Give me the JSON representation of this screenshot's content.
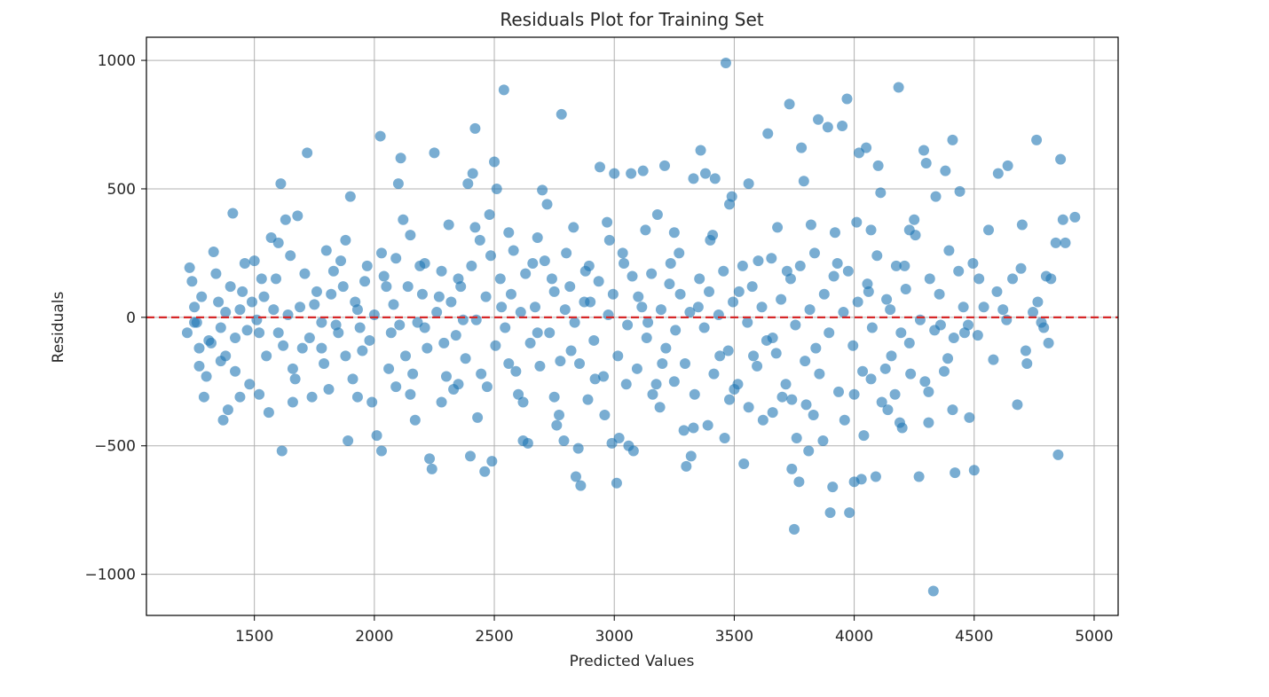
{
  "chart_data": {
    "type": "scatter",
    "title": "Residuals Plot for Training Set",
    "xlabel": "Predicted Values",
    "ylabel": "Residuals",
    "xlim": [
      1050,
      5100
    ],
    "ylim": [
      -1160,
      1090
    ],
    "xticks": [
      1500,
      2000,
      2500,
      3000,
      3500,
      4000,
      4500,
      5000
    ],
    "xtick_labels": [
      "1500",
      "2000",
      "2500",
      "3000",
      "3500",
      "4000",
      "4500",
      "5000"
    ],
    "yticks": [
      1000,
      500,
      0,
      -500,
      -1000
    ],
    "ytick_labels": [
      "1000",
      "500",
      "0",
      "−500",
      "−1000"
    ],
    "grid": true,
    "reference_line": {
      "y": 0,
      "color": "#d62728",
      "style": "dashed"
    },
    "marker_color": "#1f77b4",
    "marker_alpha": 0.6,
    "points": [
      [
        1230,
        193
      ],
      [
        1240,
        140
      ],
      [
        1250,
        40
      ],
      [
        1260,
        -20
      ],
      [
        1220,
        -60
      ],
      [
        1270,
        -120
      ],
      [
        1300,
        -230
      ],
      [
        1290,
        -310
      ],
      [
        1330,
        255
      ],
      [
        1350,
        60
      ],
      [
        1360,
        -40
      ],
      [
        1380,
        -150
      ],
      [
        1370,
        -400
      ],
      [
        1390,
        -360
      ],
      [
        1410,
        405
      ],
      [
        1400,
        120
      ],
      [
        1420,
        -80
      ],
      [
        1440,
        30
      ],
      [
        1460,
        210
      ],
      [
        1480,
        -260
      ],
      [
        1500,
        220
      ],
      [
        1510,
        -10
      ],
      [
        1520,
        -300
      ],
      [
        1540,
        80
      ],
      [
        1560,
        -370
      ],
      [
        1570,
        310
      ],
      [
        1590,
        150
      ],
      [
        1600,
        -60
      ],
      [
        1610,
        520
      ],
      [
        1615,
        -520
      ],
      [
        1630,
        380
      ],
      [
        1650,
        240
      ],
      [
        1660,
        -200
      ],
      [
        1680,
        395
      ],
      [
        1690,
        40
      ],
      [
        1700,
        -120
      ],
      [
        1720,
        640
      ],
      [
        1740,
        -310
      ],
      [
        1760,
        100
      ],
      [
        1780,
        -20
      ],
      [
        1800,
        260
      ],
      [
        1810,
        -280
      ],
      [
        1830,
        180
      ],
      [
        1850,
        -60
      ],
      [
        1870,
        120
      ],
      [
        1890,
        -480
      ],
      [
        1900,
        470
      ],
      [
        1910,
        -240
      ],
      [
        1930,
        30
      ],
      [
        1950,
        -130
      ],
      [
        1970,
        200
      ],
      [
        1990,
        -330
      ],
      [
        2010,
        -460
      ],
      [
        2025,
        705
      ],
      [
        2030,
        -520
      ],
      [
        2050,
        120
      ],
      [
        2070,
        -60
      ],
      [
        2090,
        230
      ],
      [
        2100,
        520
      ],
      [
        2110,
        620
      ],
      [
        2120,
        380
      ],
      [
        2130,
        -150
      ],
      [
        2150,
        320
      ],
      [
        2170,
        -400
      ],
      [
        2190,
        200
      ],
      [
        2210,
        -40
      ],
      [
        2230,
        -550
      ],
      [
        2240,
        -590
      ],
      [
        2250,
        640
      ],
      [
        2270,
        80
      ],
      [
        2290,
        -100
      ],
      [
        2310,
        360
      ],
      [
        2330,
        -280
      ],
      [
        2350,
        150
      ],
      [
        2370,
        -10
      ],
      [
        2390,
        520
      ],
      [
        2400,
        -540
      ],
      [
        2410,
        560
      ],
      [
        2420,
        735
      ],
      [
        2430,
        -390
      ],
      [
        2440,
        300
      ],
      [
        2460,
        -600
      ],
      [
        2480,
        400
      ],
      [
        2490,
        -560
      ],
      [
        2500,
        605
      ],
      [
        2510,
        500
      ],
      [
        2530,
        40
      ],
      [
        2540,
        885
      ],
      [
        2560,
        -180
      ],
      [
        2580,
        260
      ],
      [
        2600,
        -300
      ],
      [
        2620,
        -480
      ],
      [
        2640,
        -490
      ],
      [
        2660,
        210
      ],
      [
        2680,
        -60
      ],
      [
        2700,
        495
      ],
      [
        2720,
        440
      ],
      [
        2740,
        150
      ],
      [
        2760,
        -420
      ],
      [
        2770,
        -380
      ],
      [
        2780,
        790
      ],
      [
        2790,
        -480
      ],
      [
        2800,
        250
      ],
      [
        2820,
        -130
      ],
      [
        2840,
        -620
      ],
      [
        2850,
        -510
      ],
      [
        2860,
        -655
      ],
      [
        2880,
        180
      ],
      [
        2900,
        60
      ],
      [
        2920,
        -240
      ],
      [
        2940,
        585
      ],
      [
        2960,
        -380
      ],
      [
        2980,
        300
      ],
      [
        2990,
        -490
      ],
      [
        3000,
        560
      ],
      [
        3010,
        -645
      ],
      [
        3020,
        -470
      ],
      [
        3040,
        210
      ],
      [
        3060,
        -500
      ],
      [
        3070,
        560
      ],
      [
        3080,
        -520
      ],
      [
        3100,
        80
      ],
      [
        3120,
        570
      ],
      [
        3140,
        -20
      ],
      [
        3160,
        -300
      ],
      [
        3180,
        400
      ],
      [
        3200,
        -180
      ],
      [
        3210,
        590
      ],
      [
        3230,
        130
      ],
      [
        3250,
        -250
      ],
      [
        3270,
        250
      ],
      [
        3290,
        -440
      ],
      [
        3300,
        -580
      ],
      [
        3320,
        -540
      ],
      [
        3330,
        540
      ],
      [
        3350,
        40
      ],
      [
        3360,
        650
      ],
      [
        3380,
        560
      ],
      [
        3390,
        -420
      ],
      [
        3400,
        300
      ],
      [
        3420,
        540
      ],
      [
        3440,
        -150
      ],
      [
        3460,
        -470
      ],
      [
        3465,
        990
      ],
      [
        3480,
        440
      ],
      [
        3490,
        470
      ],
      [
        3500,
        -280
      ],
      [
        3520,
        100
      ],
      [
        3540,
        -570
      ],
      [
        3560,
        520
      ],
      [
        3580,
        -150
      ],
      [
        3600,
        220
      ],
      [
        3620,
        -400
      ],
      [
        3640,
        715
      ],
      [
        3660,
        -80
      ],
      [
        3680,
        350
      ],
      [
        3700,
        -310
      ],
      [
        3720,
        180
      ],
      [
        3730,
        830
      ],
      [
        3740,
        -590
      ],
      [
        3750,
        -825
      ],
      [
        3760,
        -470
      ],
      [
        3770,
        -640
      ],
      [
        3780,
        660
      ],
      [
        3790,
        530
      ],
      [
        3800,
        -340
      ],
      [
        3810,
        -520
      ],
      [
        3820,
        360
      ],
      [
        3840,
        -120
      ],
      [
        3850,
        770
      ],
      [
        3870,
        -480
      ],
      [
        3890,
        740
      ],
      [
        3900,
        -760
      ],
      [
        3910,
        -660
      ],
      [
        3930,
        210
      ],
      [
        3950,
        745
      ],
      [
        3960,
        -400
      ],
      [
        3970,
        850
      ],
      [
        3980,
        -760
      ],
      [
        4000,
        -640
      ],
      [
        4010,
        370
      ],
      [
        4020,
        640
      ],
      [
        4030,
        -630
      ],
      [
        4040,
        -460
      ],
      [
        4050,
        660
      ],
      [
        4060,
        100
      ],
      [
        4070,
        -240
      ],
      [
        4090,
        -620
      ],
      [
        4100,
        590
      ],
      [
        4110,
        485
      ],
      [
        4130,
        -200
      ],
      [
        4150,
        30
      ],
      [
        4170,
        -300
      ],
      [
        4185,
        895
      ],
      [
        4190,
        -410
      ],
      [
        4200,
        -430
      ],
      [
        4210,
        200
      ],
      [
        4230,
        -100
      ],
      [
        4250,
        380
      ],
      [
        4270,
        -620
      ],
      [
        4290,
        650
      ],
      [
        4300,
        600
      ],
      [
        4310,
        -410
      ],
      [
        4330,
        -1065
      ],
      [
        4340,
        470
      ],
      [
        4360,
        -30
      ],
      [
        4380,
        570
      ],
      [
        4390,
        -160
      ],
      [
        4410,
        690
      ],
      [
        4420,
        -605
      ],
      [
        4440,
        490
      ],
      [
        4460,
        -60
      ],
      [
        4480,
        -390
      ],
      [
        4500,
        -595
      ],
      [
        4520,
        150
      ],
      [
        4540,
        40
      ],
      [
        4560,
        340
      ],
      [
        4580,
        -165
      ],
      [
        4600,
        560
      ],
      [
        4620,
        30
      ],
      [
        4640,
        590
      ],
      [
        4660,
        150
      ],
      [
        4680,
        -340
      ],
      [
        4700,
        360
      ],
      [
        4720,
        -180
      ],
      [
        4760,
        690
      ],
      [
        4780,
        -20
      ],
      [
        4800,
        160
      ],
      [
        4810,
        -100
      ],
      [
        4840,
        290
      ],
      [
        4850,
        -535
      ],
      [
        4860,
        615
      ],
      [
        4870,
        380
      ],
      [
        4880,
        290
      ],
      [
        4920,
        390
      ],
      [
        1250,
        -20
      ],
      [
        1280,
        80
      ],
      [
        1310,
        -90
      ],
      [
        1340,
        170
      ],
      [
        1360,
        -170
      ],
      [
        1380,
        20
      ],
      [
        1420,
        -210
      ],
      [
        1450,
        100
      ],
      [
        1470,
        -50
      ],
      [
        1490,
        60
      ],
      [
        1530,
        150
      ],
      [
        1550,
        -150
      ],
      [
        1580,
        30
      ],
      [
        1620,
        -110
      ],
      [
        1640,
        10
      ],
      [
        1670,
        -240
      ],
      [
        1710,
        170
      ],
      [
        1730,
        -80
      ],
      [
        1750,
        50
      ],
      [
        1790,
        -180
      ],
      [
        1820,
        90
      ],
      [
        1840,
        -30
      ],
      [
        1860,
        220
      ],
      [
        1880,
        -150
      ],
      [
        1920,
        60
      ],
      [
        1940,
        -40
      ],
      [
        1960,
        140
      ],
      [
        1980,
        -90
      ],
      [
        2000,
        10
      ],
      [
        2040,
        160
      ],
      [
        2060,
        -200
      ],
      [
        2080,
        50
      ],
      [
        2105,
        -30
      ],
      [
        2140,
        120
      ],
      [
        2160,
        -220
      ],
      [
        2180,
        -20
      ],
      [
        2200,
        90
      ],
      [
        2220,
        -120
      ],
      [
        2260,
        20
      ],
      [
        2280,
        180
      ],
      [
        2300,
        -230
      ],
      [
        2320,
        60
      ],
      [
        2340,
        -70
      ],
      [
        2360,
        120
      ],
      [
        2380,
        -160
      ],
      [
        2405,
        200
      ],
      [
        2425,
        -10
      ],
      [
        2445,
        -220
      ],
      [
        2465,
        80
      ],
      [
        2485,
        240
      ],
      [
        2505,
        -110
      ],
      [
        2525,
        150
      ],
      [
        2545,
        -40
      ],
      [
        2570,
        90
      ],
      [
        2590,
        -210
      ],
      [
        2610,
        20
      ],
      [
        2630,
        170
      ],
      [
        2650,
        -100
      ],
      [
        2670,
        40
      ],
      [
        2690,
        -190
      ],
      [
        2710,
        220
      ],
      [
        2730,
        -60
      ],
      [
        2750,
        100
      ],
      [
        2775,
        -170
      ],
      [
        2795,
        30
      ],
      [
        2815,
        120
      ],
      [
        2835,
        -20
      ],
      [
        2855,
        -180
      ],
      [
        2875,
        60
      ],
      [
        2895,
        200
      ],
      [
        2915,
        -90
      ],
      [
        2935,
        140
      ],
      [
        2955,
        -230
      ],
      [
        2975,
        10
      ],
      [
        2995,
        90
      ],
      [
        3015,
        -150
      ],
      [
        3035,
        250
      ],
      [
        3055,
        -30
      ],
      [
        3075,
        160
      ],
      [
        3095,
        -200
      ],
      [
        3115,
        40
      ],
      [
        3135,
        -80
      ],
      [
        3155,
        170
      ],
      [
        3175,
        -260
      ],
      [
        3195,
        30
      ],
      [
        3215,
        -120
      ],
      [
        3235,
        210
      ],
      [
        3255,
        -50
      ],
      [
        3275,
        90
      ],
      [
        3295,
        -180
      ],
      [
        3315,
        20
      ],
      [
        3335,
        -300
      ],
      [
        3355,
        150
      ],
      [
        3375,
        -40
      ],
      [
        3395,
        100
      ],
      [
        3415,
        -220
      ],
      [
        3435,
        10
      ],
      [
        3455,
        180
      ],
      [
        3475,
        -130
      ],
      [
        3495,
        60
      ],
      [
        3515,
        -260
      ],
      [
        3535,
        200
      ],
      [
        3555,
        -20
      ],
      [
        3575,
        120
      ],
      [
        3595,
        -190
      ],
      [
        3615,
        40
      ],
      [
        3635,
        -90
      ],
      [
        3655,
        230
      ],
      [
        3675,
        -140
      ],
      [
        3695,
        70
      ],
      [
        3715,
        -260
      ],
      [
        3735,
        150
      ],
      [
        3755,
        -30
      ],
      [
        3775,
        200
      ],
      [
        3795,
        -170
      ],
      [
        3815,
        30
      ],
      [
        3835,
        250
      ],
      [
        3855,
        -220
      ],
      [
        3875,
        90
      ],
      [
        3895,
        -60
      ],
      [
        3915,
        160
      ],
      [
        3935,
        -290
      ],
      [
        3955,
        20
      ],
      [
        3975,
        180
      ],
      [
        3995,
        -110
      ],
      [
        4015,
        60
      ],
      [
        4035,
        -210
      ],
      [
        4055,
        130
      ],
      [
        4075,
        -40
      ],
      [
        4095,
        240
      ],
      [
        4115,
        -330
      ],
      [
        4135,
        70
      ],
      [
        4155,
        -150
      ],
      [
        4175,
        200
      ],
      [
        4195,
        -60
      ],
      [
        4215,
        110
      ],
      [
        4235,
        -220
      ],
      [
        4255,
        320
      ],
      [
        4275,
        -10
      ],
      [
        4295,
        -250
      ],
      [
        4315,
        150
      ],
      [
        4335,
        -50
      ],
      [
        4355,
        90
      ],
      [
        4375,
        -210
      ],
      [
        4395,
        260
      ],
      [
        4415,
        -80
      ],
      [
        4435,
        180
      ],
      [
        4455,
        40
      ],
      [
        4475,
        -30
      ],
      [
        4495,
        210
      ],
      [
        4515,
        -70
      ],
      [
        4595,
        100
      ],
      [
        4635,
        -10
      ],
      [
        4695,
        190
      ],
      [
        4715,
        -130
      ],
      [
        4745,
        20
      ],
      [
        4765,
        60
      ],
      [
        4790,
        -40
      ],
      [
        4820,
        150
      ],
      [
        1270,
        -190
      ],
      [
        1320,
        -100
      ],
      [
        1440,
        -310
      ],
      [
        1520,
        -60
      ],
      [
        1600,
        290
      ],
      [
        1660,
        -330
      ],
      [
        1780,
        -120
      ],
      [
        1880,
        300
      ],
      [
        1930,
        -310
      ],
      [
        2030,
        250
      ],
      [
        2090,
        -270
      ],
      [
        2150,
        -300
      ],
      [
        2210,
        210
      ],
      [
        2280,
        -330
      ],
      [
        2350,
        -260
      ],
      [
        2420,
        350
      ],
      [
        2470,
        -270
      ],
      [
        2560,
        330
      ],
      [
        2620,
        -330
      ],
      [
        2680,
        310
      ],
      [
        2750,
        -310
      ],
      [
        2830,
        350
      ],
      [
        2890,
        -320
      ],
      [
        2970,
        370
      ],
      [
        3050,
        -260
      ],
      [
        3130,
        340
      ],
      [
        3190,
        -350
      ],
      [
        3250,
        330
      ],
      [
        3330,
        -430
      ],
      [
        3410,
        320
      ],
      [
        3480,
        -320
      ],
      [
        3560,
        -350
      ],
      [
        3660,
        -370
      ],
      [
        3740,
        -320
      ],
      [
        3830,
        -380
      ],
      [
        3920,
        330
      ],
      [
        4000,
        -300
      ],
      [
        4070,
        340
      ],
      [
        4140,
        -360
      ],
      [
        4230,
        340
      ],
      [
        4310,
        -290
      ],
      [
        4410,
        -360
      ]
    ]
  }
}
